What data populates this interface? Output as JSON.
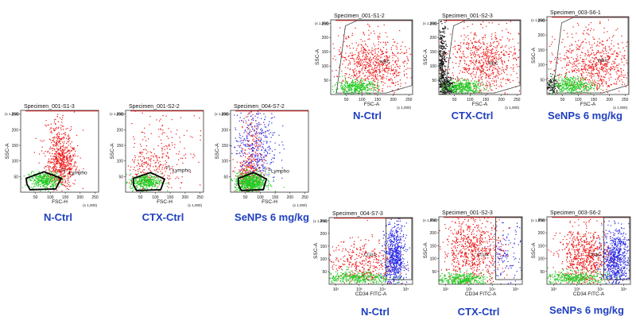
{
  "colors": {
    "red": "#ee1111",
    "green": "#22cc22",
    "blue": "#2a2ae6",
    "black": "#111111",
    "caption": "#1f3fbf"
  },
  "chart_data": [
    {
      "type": "scatter",
      "title": "Specimen_001-S1-3",
      "xlabel": "FSC-H",
      "ylabel": "SSC-A",
      "x_mult": "(x 1,000)",
      "y_mult": "(x 1,000)",
      "xlim": [
        0,
        262
      ],
      "ylim": [
        0,
        262
      ],
      "xticks": [
        "50",
        "100",
        "150",
        "200",
        "250"
      ],
      "yticks": [
        "50",
        "100",
        "150",
        "200",
        "250"
      ],
      "gate_label": "P1",
      "gate_name": "Lympho",
      "caption": "N-Ctrl",
      "populations": [
        {
          "color": "red",
          "level": "high"
        },
        {
          "color": "green",
          "level": "medium"
        }
      ]
    },
    {
      "type": "scatter",
      "title": "Specimen_001-S2-2",
      "xlabel": "FSC-H",
      "ylabel": "SSC-A",
      "x_mult": "(x 1,000)",
      "y_mult": "(x 1,000)",
      "xlim": [
        0,
        262
      ],
      "ylim": [
        0,
        262
      ],
      "xticks": [
        "50",
        "100",
        "150",
        "200",
        "250"
      ],
      "yticks": [
        "50",
        "100",
        "150",
        "200",
        "250"
      ],
      "gate_label": "P1",
      "gate_name": "Lympho",
      "caption": "CTX-Ctrl",
      "populations": [
        {
          "color": "red",
          "level": "medium"
        },
        {
          "color": "green",
          "level": "medium"
        }
      ]
    },
    {
      "type": "scatter",
      "title": "Specimen_004-S7-2",
      "xlabel": "FSC-H",
      "ylabel": "SSC-A",
      "x_mult": "(x 1,000)",
      "y_mult": "(x 1,000)",
      "xlim": [
        0,
        262
      ],
      "ylim": [
        0,
        262
      ],
      "xticks": [
        "50",
        "100",
        "150",
        "200",
        "250"
      ],
      "yticks": [
        "50",
        "100",
        "150",
        "200",
        "250"
      ],
      "gate_label": "P1",
      "gate_name": "Lympho",
      "caption": "SeNPs 6 mg/kg",
      "populations": [
        {
          "color": "red",
          "level": "medium"
        },
        {
          "color": "blue",
          "level": "medium"
        },
        {
          "color": "green",
          "level": "high"
        }
      ]
    },
    {
      "type": "scatter",
      "title": "Specimen_001-S1-2",
      "xlabel": "FSC-A",
      "ylabel": "SSC-A",
      "x_mult": "(x 1,000)",
      "y_mult": "(x 1,000)",
      "xlim": [
        0,
        262
      ],
      "ylim": [
        0,
        262
      ],
      "xticks": [
        "50",
        "100",
        "150",
        "200",
        "250"
      ],
      "yticks": [
        "50",
        "100",
        "150",
        "200",
        "250"
      ],
      "gate_label": "WBC",
      "caption": "N-Ctrl",
      "populations": [
        {
          "color": "red",
          "level": "high"
        },
        {
          "color": "green",
          "level": "medium"
        }
      ]
    },
    {
      "type": "scatter",
      "title": "Specimen_001-S2-3",
      "xlabel": "FSC-A",
      "ylabel": "SSC-A",
      "x_mult": "(x 1,000)",
      "y_mult": "(x 1,000)",
      "xlim": [
        0,
        262
      ],
      "ylim": [
        0,
        262
      ],
      "xticks": [
        "50",
        "100",
        "150",
        "200",
        "250"
      ],
      "yticks": [
        "50",
        "100",
        "150",
        "200",
        "250"
      ],
      "gate_label": "WBC",
      "caption": "CTX-Ctrl",
      "populations": [
        {
          "color": "black",
          "level": "high"
        },
        {
          "color": "red",
          "level": "high"
        },
        {
          "color": "green",
          "level": "medium"
        }
      ]
    },
    {
      "type": "scatter",
      "title": "Specimen_003-S6-1",
      "xlabel": "FSC-A",
      "ylabel": "SSC-A",
      "x_mult": "(x 1,000)",
      "y_mult": "(x 1,000)",
      "xlim": [
        0,
        262
      ],
      "ylim": [
        0,
        262
      ],
      "xticks": [
        "50",
        "100",
        "150",
        "200",
        "250"
      ],
      "yticks": [
        "50",
        "100",
        "150",
        "200",
        "250"
      ],
      "gate_label": "WBC",
      "caption": "SeNPs 6 mg/kg",
      "populations": [
        {
          "color": "black",
          "level": "low"
        },
        {
          "color": "red",
          "level": "high"
        },
        {
          "color": "green",
          "level": "medium"
        }
      ]
    },
    {
      "type": "scatter",
      "title": "Specimen_004-S7-3",
      "xlabel": "CD34 FITC-A",
      "ylabel": "SSC-A",
      "y_mult": "(x 1,000)",
      "ylim": [
        0,
        262
      ],
      "xticks": [
        "10²",
        "10³",
        "10⁴",
        "10⁵"
      ],
      "yticks": [
        "50",
        "100",
        "150",
        "200",
        "250"
      ],
      "gate_label": "CD34",
      "caption": "N-Ctrl",
      "populations": [
        {
          "color": "red",
          "level": "medium"
        },
        {
          "color": "green",
          "level": "medium"
        },
        {
          "color": "blue",
          "level": "high"
        }
      ]
    },
    {
      "type": "scatter",
      "title": "Specimen_001-S2-3",
      "xlabel": "CD34 FITC-A",
      "ylabel": "SSC-A",
      "y_mult": "(x 1,000)",
      "ylim": [
        0,
        262
      ],
      "xticks": [
        "10²",
        "10³",
        "10⁴",
        "10⁵"
      ],
      "yticks": [
        "50",
        "100",
        "150",
        "200",
        "250"
      ],
      "gate_label": "CD34",
      "caption": "CTX-Ctrl",
      "populations": [
        {
          "color": "red",
          "level": "high"
        },
        {
          "color": "green",
          "level": "medium"
        },
        {
          "color": "blue",
          "level": "low"
        }
      ]
    },
    {
      "type": "scatter",
      "title": "Specimen_003-S6-2",
      "xlabel": "CD34 FITC-A",
      "ylabel": "SSC-A",
      "y_mult": "(x 1,000)",
      "ylim": [
        0,
        262
      ],
      "xticks": [
        "10²",
        "10³",
        "10⁴",
        "10⁵"
      ],
      "yticks": [
        "50",
        "100",
        "150",
        "200",
        "250"
      ],
      "gate_label": "CD34",
      "caption": "SeNPs 6 mg/kg",
      "populations": [
        {
          "color": "red",
          "level": "high"
        },
        {
          "color": "green",
          "level": "medium"
        },
        {
          "color": "blue",
          "level": "high"
        }
      ]
    }
  ]
}
